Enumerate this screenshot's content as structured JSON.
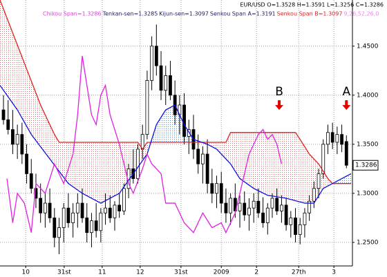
{
  "chart_data": {
    "type": "candlestick",
    "symbol_line": "EUR/USD O=1.3528 H=1.3591 L=1.3256 C=1.3286",
    "indicator_labels": [
      {
        "text": "Chikou Span=1.3286",
        "color": "#e040e0"
      },
      {
        "text": "Tenkan-sen=1.3285",
        "color": "#202060"
      },
      {
        "text": "Kijun-sen=1.3097",
        "color": "#202060"
      },
      {
        "text": "Senkou Span A=1.3191",
        "color": "#202060"
      },
      {
        "text": "Senkou Span B=1.3097",
        "color": "#e02020"
      },
      {
        "text": "9,26,52,26,0",
        "color": "#f080f0"
      }
    ],
    "last_price": 1.3286,
    "annotations": [
      {
        "text": "B",
        "x": 59.5,
        "y": 1.385
      },
      {
        "text": "A",
        "x": 74,
        "y": 1.385
      }
    ],
    "xlim": [
      -0.75,
      75.3
    ],
    "xticks": [
      {
        "value": 4.8,
        "label": "10"
      },
      {
        "value": 13.1,
        "label": "31st"
      },
      {
        "value": 21.3,
        "label": "11"
      },
      {
        "value": 29.5,
        "label": "12"
      },
      {
        "value": 38.3,
        "label": "31st"
      },
      {
        "value": 47,
        "label": "2009"
      },
      {
        "value": 54.6,
        "label": "2"
      },
      {
        "value": 63.7,
        "label": "27th"
      },
      {
        "value": 71.3,
        "label": "3"
      }
    ],
    "ylim": [
      1.226,
      1.497
    ],
    "yticks": [
      {
        "value": 1.25,
        "label": "1.2500"
      },
      {
        "value": 1.3,
        "label": "1.3000"
      },
      {
        "value": 1.35,
        "label": "1.3500"
      },
      {
        "value": 1.4,
        "label": "1.4000"
      },
      {
        "value": 1.45,
        "label": "1.4500"
      }
    ],
    "grid": true,
    "up_color": "#ffffff",
    "down_color": "#000000",
    "open": [
      1.385,
      1.375,
      1.365,
      1.35,
      1.36,
      1.34,
      1.32,
      1.305,
      1.295,
      1.28,
      1.29,
      1.275,
      1.255,
      1.265,
      1.285,
      1.27,
      1.28,
      1.29,
      1.275,
      1.26,
      1.272,
      1.262,
      1.28,
      1.285,
      1.275,
      1.288,
      1.282,
      1.305,
      1.325,
      1.315,
      1.345,
      1.36,
      1.415,
      1.45,
      1.43,
      1.405,
      1.42,
      1.4,
      1.38,
      1.39,
      1.358,
      1.365,
      1.345,
      1.33,
      1.34,
      1.31,
      1.3,
      1.31,
      1.29,
      1.28,
      1.295,
      1.282,
      1.29,
      1.278,
      1.285,
      1.292,
      1.28,
      1.27,
      1.285,
      1.295,
      1.282,
      1.288,
      1.268,
      1.275,
      1.258,
      1.268,
      1.28,
      1.292,
      1.305,
      1.32,
      1.35,
      1.362,
      1.352,
      1.36,
      1.3528
    ],
    "high": [
      1.4,
      1.395,
      1.385,
      1.37,
      1.372,
      1.35,
      1.335,
      1.32,
      1.31,
      1.3,
      1.305,
      1.285,
      1.275,
      1.29,
      1.3,
      1.29,
      1.3,
      1.305,
      1.29,
      1.28,
      1.29,
      1.285,
      1.3,
      1.298,
      1.292,
      1.3,
      1.31,
      1.33,
      1.345,
      1.35,
      1.37,
      1.425,
      1.46,
      1.472,
      1.445,
      1.43,
      1.435,
      1.415,
      1.4,
      1.402,
      1.375,
      1.38,
      1.36,
      1.348,
      1.355,
      1.325,
      1.318,
      1.322,
      1.305,
      1.3,
      1.31,
      1.298,
      1.302,
      1.295,
      1.3,
      1.305,
      1.296,
      1.29,
      1.3,
      1.305,
      1.298,
      1.295,
      1.282,
      1.285,
      1.275,
      1.285,
      1.298,
      1.312,
      1.325,
      1.355,
      1.37,
      1.372,
      1.368,
      1.37,
      1.3591
    ],
    "low": [
      1.37,
      1.36,
      1.34,
      1.335,
      1.33,
      1.31,
      1.3,
      1.285,
      1.27,
      1.265,
      1.27,
      1.245,
      1.238,
      1.25,
      1.265,
      1.255,
      1.265,
      1.27,
      1.25,
      1.245,
      1.255,
      1.25,
      1.268,
      1.27,
      1.262,
      1.275,
      1.278,
      1.295,
      1.31,
      1.31,
      1.335,
      1.355,
      1.405,
      1.42,
      1.395,
      1.39,
      1.395,
      1.37,
      1.36,
      1.35,
      1.34,
      1.335,
      1.32,
      1.31,
      1.3,
      1.29,
      1.285,
      1.28,
      1.27,
      1.268,
      1.275,
      1.265,
      1.272,
      1.262,
      1.27,
      1.275,
      1.265,
      1.258,
      1.275,
      1.278,
      1.27,
      1.262,
      1.255,
      1.25,
      1.248,
      1.255,
      1.272,
      1.285,
      1.295,
      1.315,
      1.34,
      1.345,
      1.34,
      1.342,
      1.3256
    ],
    "close": [
      1.375,
      1.365,
      1.35,
      1.36,
      1.34,
      1.32,
      1.305,
      1.295,
      1.28,
      1.29,
      1.275,
      1.255,
      1.265,
      1.285,
      1.27,
      1.28,
      1.29,
      1.275,
      1.26,
      1.272,
      1.262,
      1.28,
      1.285,
      1.275,
      1.288,
      1.282,
      1.305,
      1.325,
      1.315,
      1.345,
      1.36,
      1.415,
      1.45,
      1.43,
      1.405,
      1.42,
      1.4,
      1.38,
      1.39,
      1.358,
      1.365,
      1.345,
      1.33,
      1.34,
      1.31,
      1.3,
      1.31,
      1.29,
      1.28,
      1.295,
      1.282,
      1.29,
      1.278,
      1.285,
      1.292,
      1.28,
      1.27,
      1.285,
      1.295,
      1.282,
      1.288,
      1.268,
      1.275,
      1.258,
      1.268,
      1.28,
      1.292,
      1.305,
      1.32,
      1.35,
      1.362,
      1.352,
      1.36,
      1.35,
      1.3286
    ],
    "lines": [
      {
        "color": "#e02020",
        "x": [
          -0.75,
          8,
          10,
          11,
          12,
          29,
          30,
          31,
          48,
          49,
          63,
          64,
          66,
          68,
          70,
          71,
          75
        ],
        "values": [
          1.497,
          1.39,
          1.37,
          1.36,
          1.352,
          1.352,
          1.345,
          1.352,
          1.352,
          1.362,
          1.362,
          1.355,
          1.34,
          1.33,
          1.315,
          1.31,
          1.31
        ]
      },
      {
        "color": "#1010e0",
        "x": [
          -0.75,
          3,
          6,
          10,
          14,
          17,
          21,
          25,
          28,
          31,
          33,
          35,
          37,
          39,
          41,
          44,
          46,
          49,
          51,
          54,
          57,
          61,
          65,
          67,
          69,
          71,
          73,
          75
        ],
        "values": [
          1.41,
          1.385,
          1.36,
          1.335,
          1.31,
          1.3,
          1.29,
          1.3,
          1.32,
          1.34,
          1.37,
          1.385,
          1.39,
          1.37,
          1.355,
          1.35,
          1.345,
          1.33,
          1.315,
          1.305,
          1.298,
          1.295,
          1.29,
          1.29,
          1.305,
          1.31,
          1.315,
          1.32
        ]
      },
      {
        "color": "#e020e0",
        "x": [
          0.75,
          2,
          3,
          4.5,
          6,
          7,
          9,
          11,
          13,
          15,
          16,
          17,
          18,
          19,
          20,
          21,
          22,
          23,
          25,
          27,
          28,
          30,
          31,
          32,
          34,
          35,
          37,
          39,
          41,
          43,
          45,
          47,
          48,
          50,
          51,
          53,
          55,
          56,
          57,
          58,
          59,
          60
        ],
        "values": [
          1.315,
          1.27,
          1.3,
          1.29,
          1.26,
          1.31,
          1.3,
          1.33,
          1.31,
          1.34,
          1.38,
          1.44,
          1.41,
          1.38,
          1.37,
          1.4,
          1.41,
          1.38,
          1.35,
          1.31,
          1.3,
          1.325,
          1.34,
          1.33,
          1.32,
          1.29,
          1.29,
          1.27,
          1.26,
          1.28,
          1.265,
          1.27,
          1.26,
          1.28,
          1.3,
          1.34,
          1.36,
          1.365,
          1.355,
          1.36,
          1.35,
          1.33
        ]
      }
    ]
  }
}
